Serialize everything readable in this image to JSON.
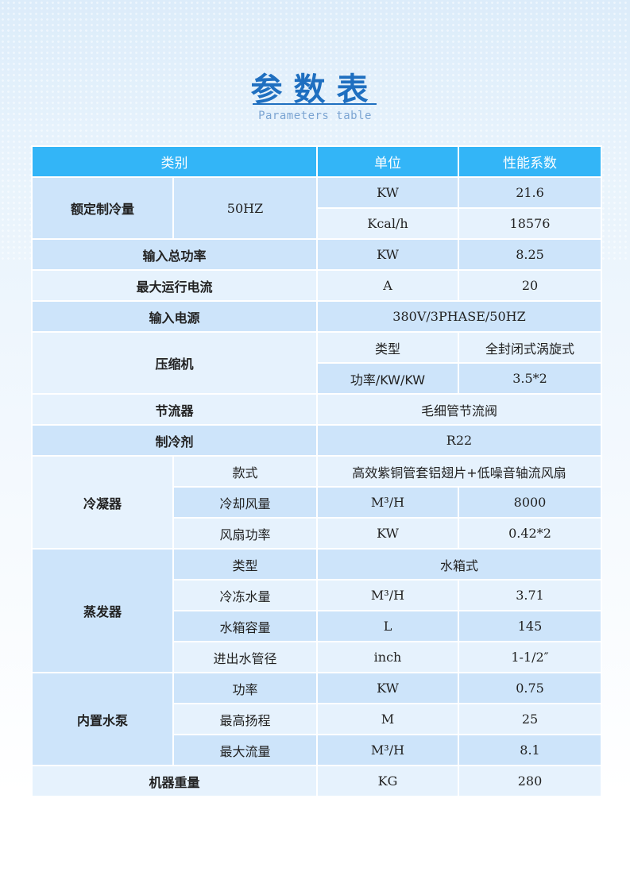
{
  "title": "参数表",
  "subtitle": "Parameters table",
  "header": {
    "category": "类别",
    "unit": "单位",
    "value": "性能系数"
  },
  "rows": {
    "cooling": {
      "label": "额定制冷量",
      "sub": "50HZ",
      "r1": {
        "unit": "KW",
        "value": "21.6"
      },
      "r2": {
        "unit": "Kcal/h",
        "value": "18576"
      }
    },
    "power": {
      "label": "输入总功率",
      "unit": "KW",
      "value": "8.25"
    },
    "current": {
      "label": "最大运行电流",
      "unit": "A",
      "value": "20"
    },
    "supply": {
      "label": "输入电源",
      "value": "380V/3PHASE/50HZ"
    },
    "compressor": {
      "label": "压缩机",
      "r1": {
        "unit": "类型",
        "value": "全封闭式涡旋式"
      },
      "r2": {
        "unit": "功率/KW/KW",
        "value": "3.5*2"
      }
    },
    "throttle": {
      "label": "节流器",
      "value": "毛细管节流阀"
    },
    "refrigerant": {
      "label": "制冷剂",
      "value": "R22"
    },
    "condenser": {
      "label": "冷凝器",
      "r1": {
        "name": "款式",
        "value": "高效紫铜管套铝翅片+低噪音轴流风扇"
      },
      "r2": {
        "name": "冷却风量",
        "unit": "M³/H",
        "value": "8000"
      },
      "r3": {
        "name": "风扇功率",
        "unit": "KW",
        "value": "0.42*2"
      }
    },
    "evaporator": {
      "label": "蒸发器",
      "r1": {
        "name": "类型",
        "value": "水箱式"
      },
      "r2": {
        "name": "冷冻水量",
        "unit": "M³/H",
        "value": "3.71"
      },
      "r3": {
        "name": "水箱容量",
        "unit": "L",
        "value": "145"
      },
      "r4": {
        "name": "进出水管径",
        "unit": "inch",
        "value": "1-1/2″"
      }
    },
    "pump": {
      "label": "内置水泵",
      "r1": {
        "name": "功率",
        "unit": "KW",
        "value": "0.75"
      },
      "r2": {
        "name": "最高扬程",
        "unit": "M",
        "value": "25"
      },
      "r3": {
        "name": "最大流量",
        "unit": "M³/H",
        "value": "8.1"
      }
    },
    "weight": {
      "label": "机器重量",
      "unit": "KG",
      "value": "280"
    }
  },
  "colors": {
    "header": "#33b5f7",
    "row_dark": "#cde4fa",
    "row_light": "#e6f2fd",
    "title": "#1f6fc0"
  }
}
